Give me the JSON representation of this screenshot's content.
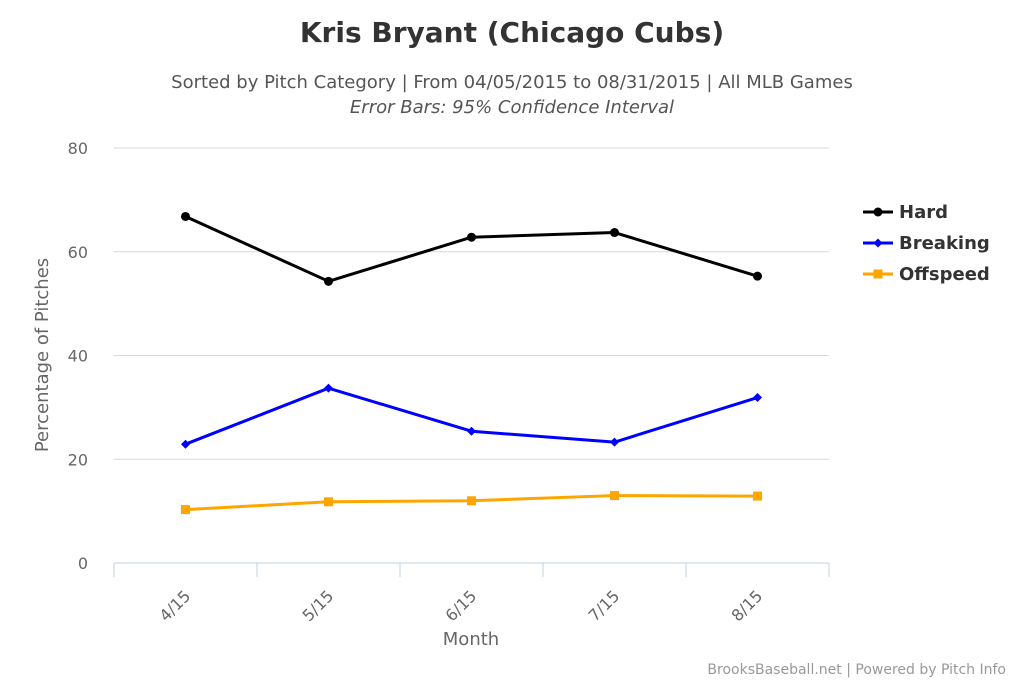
{
  "chart_data": {
    "type": "line",
    "title": "Kris Bryant (Chicago Cubs)",
    "subtitle": "Sorted by Pitch Category | From 04/05/2015 to 08/31/2015 | All MLB Games",
    "subtitle2": "Error Bars: 95% Confidence Interval",
    "xlabel": "Month",
    "ylabel": "Percentage of Pitches",
    "categories": [
      "4/15",
      "5/15",
      "6/15",
      "7/15",
      "8/15"
    ],
    "ylim": [
      0,
      80
    ],
    "yticks": [
      "0",
      "20",
      "40",
      "60",
      "80"
    ],
    "grid": true,
    "legend_position": "right",
    "series": [
      {
        "name": "Hard",
        "color": "#000000",
        "marker": "circle",
        "values": [
          66.8,
          54.3,
          62.8,
          63.7,
          55.3
        ]
      },
      {
        "name": "Breaking",
        "color": "#0000ff",
        "marker": "diamond",
        "values": [
          22.9,
          33.7,
          25.4,
          23.3,
          31.9
        ]
      },
      {
        "name": "Offspeed",
        "color": "#ffa500",
        "marker": "square",
        "values": [
          10.3,
          11.8,
          12.0,
          13.0,
          12.9
        ]
      }
    ]
  },
  "credits": "BrooksBaseball.net | Powered by Pitch Info"
}
